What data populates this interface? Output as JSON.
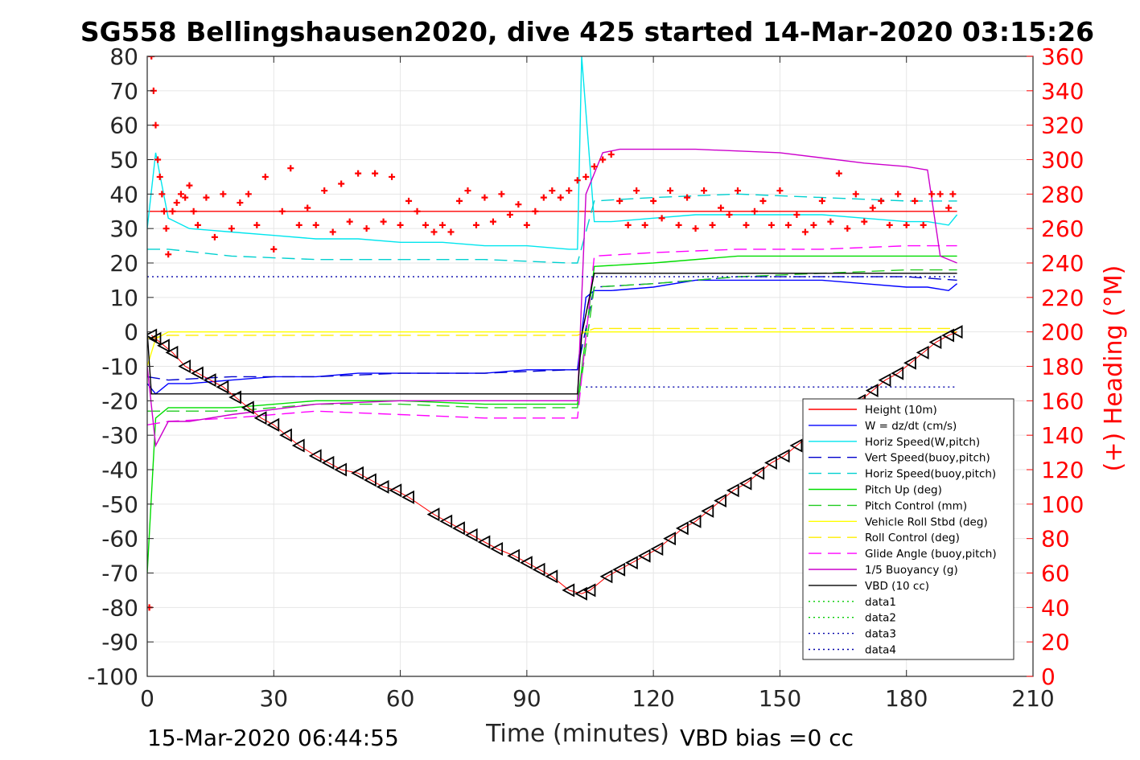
{
  "chart_data": {
    "type": "line",
    "title": "SG558 Bellingshausen2020, dive 425 started 14-Mar-2020 03:15:26",
    "xlabel": "Time (minutes)",
    "ylabel": "",
    "ylabel_right": "(+) Heading (°M)",
    "xlim": [
      0,
      210
    ],
    "ylim": [
      -100,
      80
    ],
    "ylim_right": [
      0,
      360
    ],
    "x_ticks": [
      "0",
      "30",
      "60",
      "90",
      "120",
      "150",
      "180",
      "210"
    ],
    "y_ticks": [
      "80",
      "70",
      "60",
      "50",
      "40",
      "30",
      "20",
      "10",
      "0",
      "-10",
      "-20",
      "-30",
      "-40",
      "-50",
      "-60",
      "-70",
      "-80",
      "-90",
      "-100"
    ],
    "y_ticks_right": [
      "360",
      "340",
      "320",
      "300",
      "280",
      "260",
      "240",
      "220",
      "200",
      "180",
      "160",
      "140",
      "120",
      "100",
      "80",
      "60",
      "40",
      "20",
      "0"
    ],
    "grid": true,
    "legend_position": "lower-right",
    "series": [
      {
        "name": "Height (10m)",
        "color": "#ff0000",
        "style": "solid",
        "x": [
          0,
          103,
          103.5,
          192
        ],
        "y": [
          35,
          35,
          35,
          35
        ]
      },
      {
        "name": "W = dz/dt (cm/s)",
        "color": "#0000ff",
        "style": "solid",
        "x": [
          0,
          2,
          5,
          10,
          20,
          30,
          40,
          50,
          60,
          70,
          80,
          90,
          100,
          102,
          104,
          106,
          110,
          120,
          130,
          140,
          150,
          160,
          170,
          180,
          185,
          190,
          192
        ],
        "y": [
          -15,
          -18,
          -15,
          -15,
          -14,
          -13,
          -13,
          -12,
          -12,
          -12,
          -12,
          -11,
          -11,
          -11,
          10,
          12,
          12,
          13,
          15,
          15,
          15,
          15,
          14,
          13,
          13,
          12,
          14
        ]
      },
      {
        "name": "Horiz Speed(W,pitch)",
        "color": "#00e5ee",
        "style": "solid",
        "x": [
          0,
          2,
          5,
          10,
          20,
          30,
          40,
          50,
          60,
          70,
          80,
          90,
          100,
          102,
          103,
          106,
          110,
          120,
          130,
          140,
          150,
          160,
          170,
          180,
          185,
          190,
          192
        ],
        "y": [
          30,
          52,
          33,
          30,
          29,
          28,
          27,
          27,
          26,
          26,
          25,
          25,
          24,
          24,
          80,
          32,
          32,
          33,
          34,
          34,
          34,
          34,
          33,
          32,
          32,
          31,
          34
        ]
      },
      {
        "name": "Vert Speed(buoy,pitch)",
        "color": "#0000cd",
        "style": "dashed",
        "x": [
          0,
          5,
          20,
          40,
          60,
          80,
          100,
          102,
          106,
          120,
          140,
          160,
          180,
          192
        ],
        "y": [
          -13,
          -14,
          -13,
          -13,
          -12,
          -12,
          -11,
          -11,
          13,
          14,
          16,
          16,
          16,
          15
        ]
      },
      {
        "name": "Horiz Speed(buoy,pitch)",
        "color": "#00d0d0",
        "style": "dashed",
        "x": [
          0,
          5,
          20,
          40,
          60,
          80,
          100,
          102,
          106,
          120,
          140,
          160,
          180,
          192
        ],
        "y": [
          24,
          24,
          22,
          21,
          21,
          21,
          20,
          20,
          38,
          39,
          40,
          39,
          38,
          38
        ]
      },
      {
        "name": "Pitch Up (deg)",
        "color": "#00dd00",
        "style": "solid",
        "x": [
          0,
          2,
          5,
          20,
          40,
          60,
          80,
          100,
          102,
          106,
          120,
          140,
          160,
          180,
          192
        ],
        "y": [
          -70,
          -25,
          -22,
          -22,
          -20,
          -20,
          -21,
          -21,
          -21,
          19,
          20,
          22,
          22,
          22,
          22
        ]
      },
      {
        "name": "Pitch Control (mm)",
        "color": "#22cc22",
        "style": "dashed",
        "x": [
          0,
          5,
          20,
          40,
          60,
          80,
          100,
          102,
          106,
          120,
          140,
          160,
          180,
          192
        ],
        "y": [
          -23,
          -23,
          -23,
          -21,
          -21,
          -22,
          -22,
          -22,
          13,
          14,
          16,
          17,
          18,
          18
        ]
      },
      {
        "name": "Vehicle Roll Stbd (deg)",
        "color": "#ffff00",
        "style": "solid",
        "x": [
          0,
          2,
          5,
          20,
          40,
          60,
          80,
          100,
          102,
          106,
          120,
          140,
          160,
          180,
          192
        ],
        "y": [
          -10,
          -2,
          0,
          0,
          0,
          0,
          0,
          0,
          0,
          0,
          0,
          0,
          0,
          0,
          0
        ]
      },
      {
        "name": "Roll Control (deg)",
        "color": "#ffee00",
        "style": "dashed",
        "x": [
          0,
          5,
          20,
          40,
          60,
          80,
          100,
          102,
          106,
          120,
          140,
          160,
          180,
          192
        ],
        "y": [
          -2,
          -1,
          -1,
          -1,
          -1,
          -1,
          -1,
          -1,
          1,
          1,
          1,
          1,
          1,
          1
        ]
      },
      {
        "name": "Glide Angle (buoy,pitch)",
        "color": "#ff00ff",
        "style": "dashed",
        "x": [
          0,
          5,
          20,
          40,
          60,
          80,
          100,
          102,
          106,
          120,
          140,
          160,
          180,
          192
        ],
        "y": [
          -27,
          -26,
          -25,
          -23,
          -24,
          -25,
          -25,
          -25,
          22,
          23,
          24,
          24,
          25,
          25
        ]
      },
      {
        "name": "1/5 Buoyancy (g)",
        "color": "#cc00cc",
        "style": "solid",
        "x": [
          0,
          2,
          5,
          10,
          20,
          40,
          60,
          80,
          100,
          102,
          104,
          108,
          112,
          130,
          150,
          170,
          180,
          185,
          188,
          192
        ],
        "y": [
          -10,
          -33,
          -26,
          -26,
          -24,
          -21,
          -20,
          -20,
          -20,
          -20,
          40,
          52,
          53,
          53,
          52,
          49,
          48,
          47,
          22,
          20
        ]
      },
      {
        "name": "VBD (10 cc)",
        "color": "#000000",
        "style": "solid",
        "x": [
          0,
          1,
          2,
          102,
          103,
          106,
          192
        ],
        "y": [
          0,
          -18,
          -18,
          -18,
          -1,
          17,
          17
        ]
      },
      {
        "name": "data1",
        "color": "#00cc00",
        "style": "dotted",
        "x": [],
        "y": []
      },
      {
        "name": "data2",
        "color": "#00cc00",
        "style": "dotted",
        "x": [],
        "y": []
      },
      {
        "name": "data3",
        "color": "#0000aa",
        "style": "dotted",
        "x": [
          0,
          103,
          104,
          192
        ],
        "y": [
          16,
          16,
          16,
          16
        ]
      },
      {
        "name": "data4",
        "color": "#0000aa",
        "style": "dotted",
        "x": [
          104,
          192
        ],
        "y": [
          -16,
          -16
        ]
      }
    ],
    "depth_markers": {
      "color": "#000000",
      "x": [
        1,
        2,
        4,
        6,
        9,
        12,
        15,
        18,
        21,
        24,
        27,
        30,
        33,
        36,
        40,
        43,
        46,
        50,
        53,
        56,
        59,
        62,
        68,
        71,
        74,
        77,
        80,
        83,
        87,
        90,
        93,
        96,
        100,
        103,
        105,
        109,
        112,
        115,
        118,
        121,
        124,
        127,
        130,
        133,
        136,
        139,
        142,
        145,
        148,
        151,
        154,
        157,
        160,
        163,
        166,
        169,
        172,
        175,
        178,
        181,
        184,
        187,
        190,
        192
      ],
      "y": [
        -1,
        -2,
        -4,
        -6,
        -10,
        -12,
        -14,
        -16,
        -19,
        -22,
        -25,
        -27,
        -30,
        -33,
        -36,
        -38,
        -40,
        -41,
        -43,
        -45,
        -46,
        -48,
        -53,
        -55,
        -57,
        -59,
        -61,
        -63,
        -65,
        -67,
        -69,
        -71,
        -75,
        -76,
        -75,
        -71,
        -69,
        -67,
        -65,
        -63,
        -60,
        -57,
        -55,
        -52,
        -49,
        -46,
        -44,
        -41,
        -38,
        -36,
        -33,
        -30,
        -28,
        -26,
        -23,
        -20,
        -17,
        -14,
        -12,
        -9,
        -6,
        -3,
        -1,
        0
      ]
    },
    "heading_markers": {
      "name": "(+) Heading (°M)",
      "color": "#ff0000",
      "axis": "right",
      "x": [
        0.5,
        1,
        1.5,
        2,
        2.5,
        3,
        3.5,
        4,
        4.5,
        5,
        6,
        7,
        8,
        9,
        10,
        11,
        12,
        14,
        16,
        18,
        20,
        22,
        24,
        26,
        28,
        30,
        32,
        34,
        36,
        38,
        40,
        42,
        44,
        46,
        48,
        50,
        52,
        54,
        56,
        58,
        60,
        62,
        64,
        66,
        68,
        70,
        72,
        74,
        76,
        78,
        80,
        82,
        84,
        86,
        88,
        90,
        92,
        94,
        96,
        98,
        100,
        102,
        104,
        106,
        108,
        110,
        112,
        114,
        116,
        118,
        120,
        122,
        124,
        126,
        128,
        130,
        132,
        134,
        136,
        138,
        140,
        142,
        144,
        146,
        148,
        150,
        152,
        154,
        156,
        158,
        160,
        162,
        164,
        166,
        168,
        170,
        172,
        174,
        176,
        178,
        180,
        182,
        184,
        186,
        188,
        190,
        191
      ],
      "y": [
        40,
        360,
        340,
        320,
        300,
        290,
        280,
        270,
        260,
        245,
        270,
        275,
        280,
        278,
        285,
        270,
        262,
        278,
        255,
        280,
        260,
        275,
        280,
        262,
        290,
        248,
        270,
        295,
        262,
        272,
        262,
        282,
        258,
        286,
        264,
        292,
        260,
        292,
        264,
        290,
        262,
        276,
        270,
        262,
        258,
        262,
        258,
        276,
        282,
        262,
        278,
        264,
        280,
        268,
        274,
        262,
        270,
        278,
        282,
        278,
        282,
        288,
        290,
        296,
        300,
        303,
        276,
        262,
        282,
        262,
        276,
        266,
        282,
        262,
        278,
        260,
        282,
        262,
        272,
        268,
        282,
        262,
        270,
        276,
        262,
        282,
        262,
        268,
        258,
        262,
        276,
        264,
        292,
        260,
        280,
        264,
        272,
        276,
        262,
        280,
        262,
        276,
        262,
        280,
        280,
        272,
        280
      ]
    }
  },
  "footer": {
    "end_time": "15-Mar-2020 06:44:55",
    "vbd_bias": "VBD bias =0 cc"
  }
}
